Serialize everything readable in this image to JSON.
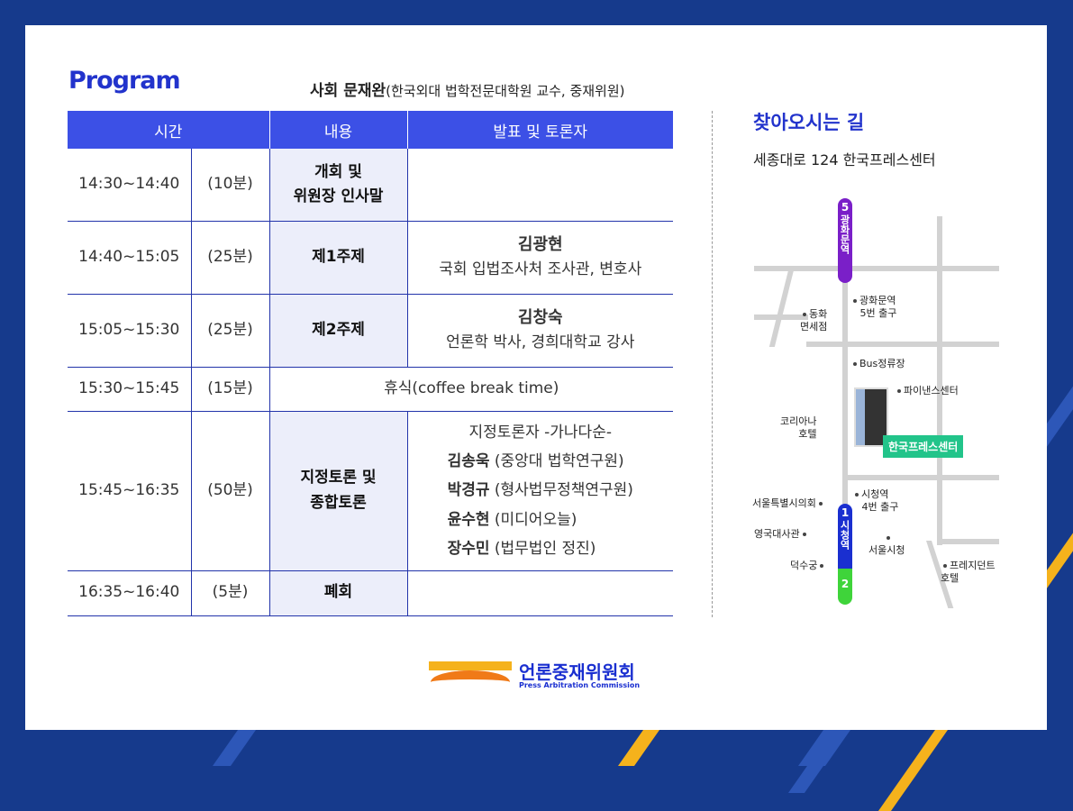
{
  "header": {
    "title": "Program",
    "moderator_label": "사회 문재완",
    "moderator_detail": "(한국외대 법학전문대학원 교수, 중재위원)"
  },
  "table": {
    "columns": [
      "시간",
      "내용",
      "발표 및 토론자"
    ],
    "rows": [
      {
        "time": "14:30~14:40",
        "duration": "(10분)",
        "content": "개회 및\n위원장 인사말",
        "speaker": ""
      },
      {
        "time": "14:40~15:05",
        "duration": "(25분)",
        "content": "제1주제",
        "speaker_name": "김광현",
        "speaker": "국회 입법조사처 조사관, 변호사"
      },
      {
        "time": "15:05~15:30",
        "duration": "(25분)",
        "content": "제2주제",
        "speaker_name": "김창숙",
        "speaker": "언론학 박사, 경희대학교 강사"
      },
      {
        "time": "15:30~15:45",
        "duration": "(15분)",
        "content": "휴식(coffee break time)"
      },
      {
        "time": "15:45~16:35",
        "duration": "(50분)",
        "content": "지정토론 및\n종합토론",
        "speaker_head": "지정토론자 -가나다순-",
        "panel": [
          {
            "name": "김송욱",
            "org": "(중앙대 법학연구원)"
          },
          {
            "name": "박경규",
            "org": "(형사법무정책연구원)"
          },
          {
            "name": "윤수현",
            "org": "(미디어오늘)"
          },
          {
            "name": "장수민",
            "org": "(법무법인 정진)"
          }
        ]
      },
      {
        "time": "16:35~16:40",
        "duration": "(5분)",
        "content": "폐회",
        "speaker": ""
      }
    ]
  },
  "map": {
    "title": "찾아오시는 길",
    "address": "세종대로 124 한국프레스센터",
    "station_top": {
      "num": "5",
      "name": "광화문역",
      "color": "#7a1fc8"
    },
    "station_bottom": {
      "num": "1",
      "name": "시청역",
      "color": "#1a2fd0",
      "num2": "2",
      "color2": "#3fd43a"
    },
    "labels": {
      "gwanghwamun_exit": "광화문역",
      "gwanghwamun_exit2": "5번 출구",
      "donghwa": "동화\n면세점",
      "bus": "Bus정류장",
      "finance": "파이낸스센터",
      "koreana": "코리아나\n호텔",
      "press_center": "한국프레스센터",
      "cityhall_exit": "시청역",
      "cityhall_exit2": "4번 출구",
      "council": "서울특별시의회",
      "embassy": "영국대사관",
      "deoksugung": "덕수궁",
      "cityhall": "서울시청",
      "president": "프레지던트\n호텔"
    }
  },
  "footer": {
    "logo_ko": "언론중재위원회",
    "logo_en": "Press Arbitration Commission"
  }
}
